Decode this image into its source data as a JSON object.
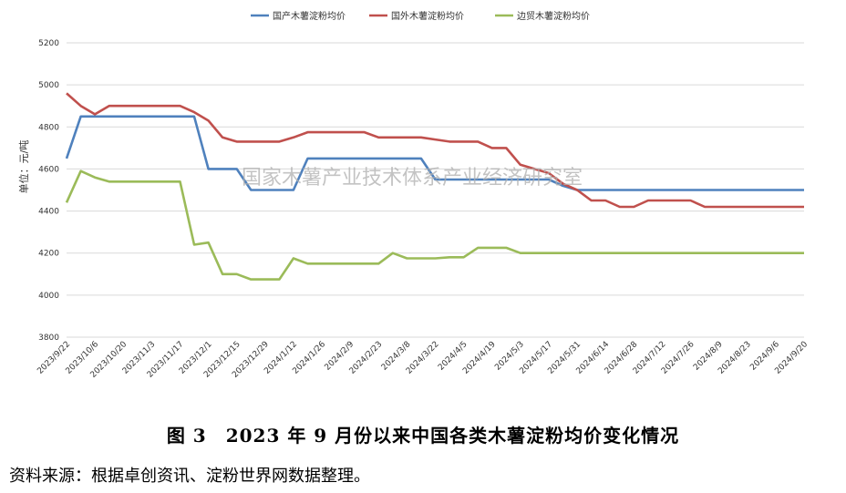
{
  "chart_data": {
    "type": "line",
    "ylabel": "单位：元/吨",
    "ylim": [
      3800,
      5200
    ],
    "yticks": [
      3800,
      4000,
      4200,
      4400,
      4600,
      4800,
      5000,
      5200
    ],
    "grid": "horizontal",
    "legend_position": "top",
    "categories": [
      "2023/9/22",
      "2023/9/29",
      "2023/10/6",
      "2023/10/13",
      "2023/10/20",
      "2023/10/27",
      "2023/11/3",
      "2023/11/10",
      "2023/11/17",
      "2023/11/24",
      "2023/12/1",
      "2023/12/8",
      "2023/12/15",
      "2023/12/22",
      "2023/12/29",
      "2024/1/5",
      "2024/1/12",
      "2024/1/19",
      "2024/1/26",
      "2024/2/2",
      "2024/2/9",
      "2024/2/16",
      "2024/2/23",
      "2024/3/1",
      "2024/3/8",
      "2024/3/15",
      "2024/3/22",
      "2024/3/29",
      "2024/4/5",
      "2024/4/12",
      "2024/4/19",
      "2024/4/26",
      "2024/5/3",
      "2024/5/10",
      "2024/5/17",
      "2024/5/24",
      "2024/5/31",
      "2024/6/7",
      "2024/6/14",
      "2024/6/21",
      "2024/6/28",
      "2024/7/5",
      "2024/7/12",
      "2024/7/19",
      "2024/7/26",
      "2024/8/2",
      "2024/8/9",
      "2024/8/16",
      "2024/8/23",
      "2024/8/30",
      "2024/9/6",
      "2024/9/13",
      "2024/9/20"
    ],
    "tick_labels": [
      "2023/9/22",
      "2023/10/6",
      "2023/10/20",
      "2023/11/3",
      "2023/11/17",
      "2023/12/1",
      "2023/12/15",
      "2023/12/29",
      "2024/1/12",
      "2024/1/26",
      "2024/2/9",
      "2024/2/23",
      "2024/3/8",
      "2024/3/22",
      "2024/4/5",
      "2024/4/19",
      "2024/5/3",
      "2024/5/17",
      "2024/5/31",
      "2024/6/14",
      "2024/6/28",
      "2024/7/12",
      "2024/7/26",
      "2024/8/9",
      "2024/8/23",
      "2024/9/6",
      "2024/9/20"
    ],
    "series": [
      {
        "name": "国产木薯淀粉均价",
        "color": "#4f81bd",
        "values": [
          4650,
          4850,
          4850,
          4850,
          4850,
          4850,
          4850,
          4850,
          4850,
          4850,
          4600,
          4600,
          4600,
          4500,
          4500,
          4500,
          4500,
          4650,
          4650,
          4650,
          4650,
          4650,
          4650,
          4650,
          4650,
          4650,
          4550,
          4550,
          4550,
          4550,
          4550,
          4550,
          4550,
          4550,
          4550,
          4520,
          4500,
          4500,
          4500,
          4500,
          4500,
          4500,
          4500,
          4500,
          4500,
          4500,
          4500,
          4500,
          4500,
          4500,
          4500,
          4500,
          4500
        ]
      },
      {
        "name": "国外木薯淀粉均价",
        "color": "#c0504d",
        "values": [
          4960,
          4900,
          4860,
          4900,
          4900,
          4900,
          4900,
          4900,
          4900,
          4870,
          4830,
          4750,
          4730,
          4730,
          4730,
          4730,
          4750,
          4775,
          4775,
          4775,
          4775,
          4775,
          4750,
          4750,
          4750,
          4750,
          4740,
          4730,
          4730,
          4730,
          4700,
          4700,
          4620,
          4600,
          4580,
          4530,
          4500,
          4450,
          4450,
          4420,
          4420,
          4450,
          4450,
          4450,
          4450,
          4420,
          4420,
          4420,
          4420,
          4420,
          4420,
          4420,
          4420
        ]
      },
      {
        "name": "边贸木薯淀粉均价",
        "color": "#9bbb59",
        "values": [
          4440,
          4590,
          4560,
          4540,
          4540,
          4540,
          4540,
          4540,
          4540,
          4240,
          4250,
          4100,
          4100,
          4075,
          4075,
          4075,
          4175,
          4150,
          4150,
          4150,
          4150,
          4150,
          4150,
          4200,
          4175,
          4175,
          4175,
          4180,
          4180,
          4225,
          4225,
          4225,
          4200,
          4200,
          4200,
          4200,
          4200,
          4200,
          4200,
          4200,
          4200,
          4200,
          4200,
          4200,
          4200,
          4200,
          4200,
          4200,
          4200,
          4200,
          4200,
          4200,
          4200
        ]
      }
    ]
  },
  "watermark": "国家木薯产业技术体系产业经济研究室",
  "caption": "图 3　2023 年 9 月份以来中国各类木薯淀粉均价变化情况",
  "source": "资料来源：根据卓创资讯、淀粉世界网数据整理。"
}
